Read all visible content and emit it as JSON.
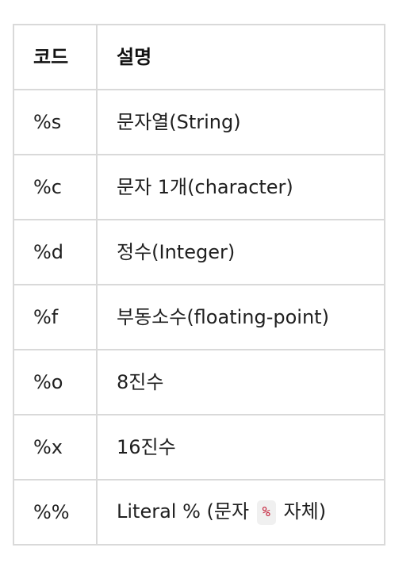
{
  "table": {
    "headers": {
      "code": "코드",
      "description": "설명"
    },
    "rows": [
      {
        "code": "%s",
        "description": "문자열(String)"
      },
      {
        "code": "%c",
        "description": "문자 1개(character)"
      },
      {
        "code": "%d",
        "description": "정수(Integer)"
      },
      {
        "code": "%f",
        "description": "부동소수(floating-point)"
      },
      {
        "code": "%o",
        "description": "8진수"
      },
      {
        "code": "%x",
        "description": "16진수"
      },
      {
        "code": "%%",
        "description_before": "Literal % (문자 ",
        "description_code": "%",
        "description_after": " 자체)"
      }
    ]
  },
  "colors": {
    "border": "#d9d9d9",
    "inline_code_text": "#c5223b",
    "inline_code_bg": "#f0f0f0"
  }
}
